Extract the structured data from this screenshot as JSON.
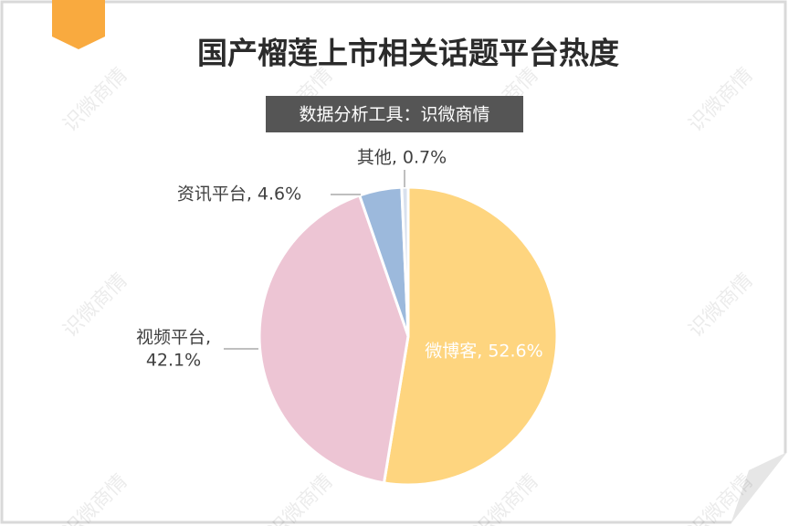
{
  "chart_data": {
    "type": "pie",
    "title": "国产榴莲上市相关话题平台热度",
    "subtitle": "数据分析工具：识微商情",
    "watermark": "识微商情",
    "values": [
      52.6,
      42.1,
      4.6,
      0.7
    ],
    "value_labels": [
      "微博客, 52.6%",
      "视频平台, 42.1%",
      "资讯平台, 4.6%",
      "其他, 0.7%"
    ],
    "colors": [
      "#fed57f",
      "#edc5d4",
      "#9cb9dc",
      "#d9e1ee"
    ]
  }
}
